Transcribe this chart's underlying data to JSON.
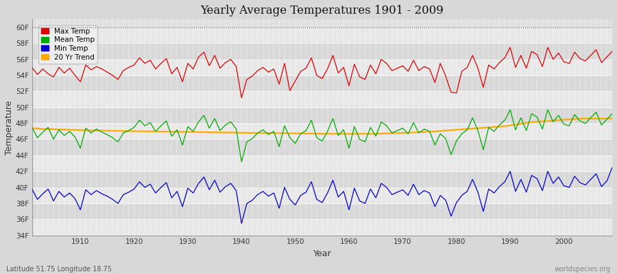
{
  "title": "Yearly Average Temperatures 1901 - 2009",
  "xlabel": "Year",
  "ylabel": "Temperature",
  "subtitle_left": "Latitude 51.75 Longitude 18.75",
  "subtitle_right": "worldspecies.org",
  "ylim": [
    34,
    61
  ],
  "yticks": [
    34,
    36,
    38,
    40,
    42,
    44,
    46,
    48,
    50,
    52,
    54,
    56,
    58,
    60
  ],
  "ytick_labels": [
    "34F",
    "36F",
    "38F",
    "40F",
    "42F",
    "44F",
    "46F",
    "48F",
    "50F",
    "52F",
    "54F",
    "56F",
    "58F",
    "60F"
  ],
  "xlim": [
    1901,
    2009
  ],
  "fig_bg_color": "#d8d8d8",
  "plot_bg_color": "#e0e0e0",
  "band_color_light": "#e8e8e8",
  "band_color_dark": "#d8d8d8",
  "grid_color": "#ffffff",
  "max_temp_color": "#dd0000",
  "mean_temp_color": "#00aa00",
  "min_temp_color": "#0000cc",
  "trend_color": "#ffaa00",
  "legend_entries": [
    "Max Temp",
    "Mean Temp",
    "Min Temp",
    "20 Yr Trend"
  ],
  "years": [
    1901,
    1902,
    1903,
    1904,
    1905,
    1906,
    1907,
    1908,
    1909,
    1910,
    1911,
    1912,
    1913,
    1914,
    1915,
    1916,
    1917,
    1918,
    1919,
    1920,
    1921,
    1922,
    1923,
    1924,
    1925,
    1926,
    1927,
    1928,
    1929,
    1930,
    1931,
    1932,
    1933,
    1934,
    1935,
    1936,
    1937,
    1938,
    1939,
    1940,
    1941,
    1942,
    1943,
    1944,
    1945,
    1946,
    1947,
    1948,
    1949,
    1950,
    1951,
    1952,
    1953,
    1954,
    1955,
    1956,
    1957,
    1958,
    1959,
    1960,
    1961,
    1962,
    1963,
    1964,
    1965,
    1966,
    1967,
    1968,
    1969,
    1970,
    1971,
    1972,
    1973,
    1974,
    1975,
    1976,
    1977,
    1978,
    1979,
    1980,
    1981,
    1982,
    1983,
    1984,
    1985,
    1986,
    1987,
    1988,
    1989,
    1990,
    1991,
    1992,
    1993,
    1994,
    1995,
    1996,
    1997,
    1998,
    1999,
    2000,
    2001,
    2002,
    2003,
    2004,
    2005,
    2006,
    2007,
    2008,
    2009
  ],
  "max_temp": [
    55.0,
    54.1,
    54.8,
    54.2,
    53.8,
    55.0,
    54.3,
    54.9,
    54.0,
    53.2,
    55.3,
    54.7,
    55.1,
    54.8,
    54.4,
    54.0,
    53.5,
    54.6,
    55.0,
    55.3,
    56.2,
    55.5,
    55.9,
    54.8,
    55.5,
    56.1,
    54.2,
    55.0,
    53.2,
    55.5,
    54.8,
    56.3,
    56.9,
    55.2,
    56.5,
    54.9,
    55.6,
    56.0,
    55.1,
    51.2,
    53.5,
    53.9,
    54.6,
    55.0,
    54.4,
    54.8,
    52.9,
    55.5,
    52.1,
    53.3,
    54.5,
    54.9,
    56.2,
    54.0,
    53.6,
    54.8,
    56.5,
    54.3,
    55.0,
    52.7,
    55.4,
    53.8,
    53.5,
    55.3,
    54.2,
    56.0,
    55.5,
    54.6,
    54.9,
    55.2,
    54.5,
    55.9,
    54.6,
    55.1,
    54.8,
    53.1,
    55.5,
    53.9,
    51.9,
    51.8,
    54.5,
    55.0,
    56.5,
    54.9,
    52.5,
    55.3,
    54.8,
    55.6,
    56.2,
    57.5,
    55.0,
    56.5,
    54.9,
    57.0,
    56.6,
    55.1,
    57.5,
    56.0,
    56.8,
    55.7,
    55.5,
    56.9,
    56.1,
    55.8,
    56.5,
    57.2,
    55.6,
    56.3,
    57.0
  ],
  "mean_temp": [
    47.5,
    46.2,
    46.9,
    47.5,
    46.0,
    47.2,
    46.5,
    47.0,
    46.3,
    44.9,
    47.4,
    46.8,
    47.3,
    46.9,
    46.6,
    46.2,
    45.7,
    46.8,
    47.1,
    47.5,
    48.4,
    47.7,
    48.1,
    47.0,
    47.7,
    48.3,
    46.4,
    47.2,
    45.3,
    47.6,
    47.0,
    48.2,
    49.0,
    47.4,
    48.6,
    47.1,
    47.8,
    48.2,
    47.3,
    43.2,
    45.7,
    46.1,
    46.8,
    47.2,
    46.6,
    47.0,
    45.1,
    47.7,
    46.2,
    45.5,
    46.7,
    47.1,
    48.4,
    46.2,
    45.8,
    47.0,
    48.6,
    46.5,
    47.2,
    44.9,
    47.6,
    46.0,
    45.7,
    47.5,
    46.4,
    48.2,
    47.7,
    46.8,
    47.1,
    47.4,
    46.7,
    48.1,
    46.8,
    47.3,
    47.0,
    45.3,
    46.7,
    46.1,
    44.1,
    45.8,
    46.7,
    47.2,
    48.7,
    47.1,
    44.7,
    47.5,
    47.0,
    47.8,
    48.4,
    49.7,
    47.2,
    48.7,
    47.1,
    49.2,
    48.8,
    47.3,
    49.7,
    48.2,
    49.0,
    47.9,
    47.7,
    49.1,
    48.3,
    48.0,
    48.7,
    49.4,
    47.8,
    48.5,
    49.2
  ],
  "min_temp": [
    39.8,
    38.5,
    39.2,
    39.8,
    38.3,
    39.5,
    38.8,
    39.3,
    38.6,
    37.2,
    39.7,
    39.1,
    39.6,
    39.2,
    38.9,
    38.5,
    38.0,
    39.1,
    39.4,
    39.8,
    40.7,
    40.0,
    40.4,
    39.3,
    40.0,
    40.6,
    38.7,
    39.5,
    37.6,
    39.9,
    39.3,
    40.5,
    41.3,
    39.7,
    40.9,
    39.4,
    40.1,
    40.5,
    39.6,
    35.5,
    38.0,
    38.4,
    39.1,
    39.5,
    38.9,
    39.3,
    37.4,
    40.0,
    38.5,
    37.8,
    39.0,
    39.4,
    40.7,
    38.5,
    38.1,
    39.3,
    40.9,
    38.8,
    39.5,
    37.2,
    39.9,
    38.3,
    38.0,
    39.8,
    38.7,
    40.5,
    40.0,
    39.1,
    39.4,
    39.7,
    39.0,
    40.4,
    39.1,
    39.6,
    39.3,
    37.6,
    39.0,
    38.4,
    36.4,
    38.1,
    39.0,
    39.5,
    41.0,
    39.4,
    37.0,
    39.8,
    39.3,
    40.1,
    40.7,
    42.0,
    39.5,
    41.0,
    39.4,
    41.5,
    41.1,
    39.6,
    42.0,
    40.5,
    41.3,
    40.2,
    40.0,
    41.4,
    40.6,
    40.3,
    41.0,
    41.7,
    40.1,
    40.8,
    42.5
  ],
  "trend": [
    47.4,
    47.35,
    47.3,
    47.28,
    47.26,
    47.24,
    47.22,
    47.2,
    47.18,
    47.16,
    47.14,
    47.12,
    47.1,
    47.09,
    47.08,
    47.07,
    47.06,
    47.05,
    47.04,
    47.03,
    47.02,
    47.01,
    47.0,
    46.99,
    46.98,
    46.97,
    46.96,
    46.95,
    46.94,
    46.93,
    46.92,
    46.91,
    46.9,
    46.89,
    46.88,
    46.87,
    46.86,
    46.85,
    46.84,
    46.83,
    46.82,
    46.81,
    46.8,
    46.8,
    46.8,
    46.79,
    46.78,
    46.77,
    46.76,
    46.75,
    46.74,
    46.73,
    46.72,
    46.71,
    46.7,
    46.7,
    46.7,
    46.7,
    46.7,
    46.7,
    46.7,
    46.7,
    46.7,
    46.7,
    46.7,
    46.72,
    46.74,
    46.76,
    46.78,
    46.8,
    46.83,
    46.86,
    46.9,
    46.93,
    46.97,
    47.0,
    47.05,
    47.1,
    47.15,
    47.2,
    47.25,
    47.3,
    47.35,
    47.4,
    47.45,
    47.5,
    47.55,
    47.6,
    47.65,
    47.75,
    47.85,
    47.95,
    48.05,
    48.15,
    48.2,
    48.25,
    48.3,
    48.35,
    48.4,
    48.45,
    48.5,
    48.55,
    48.6,
    48.6,
    48.6,
    48.6,
    48.6,
    48.6,
    48.6
  ]
}
